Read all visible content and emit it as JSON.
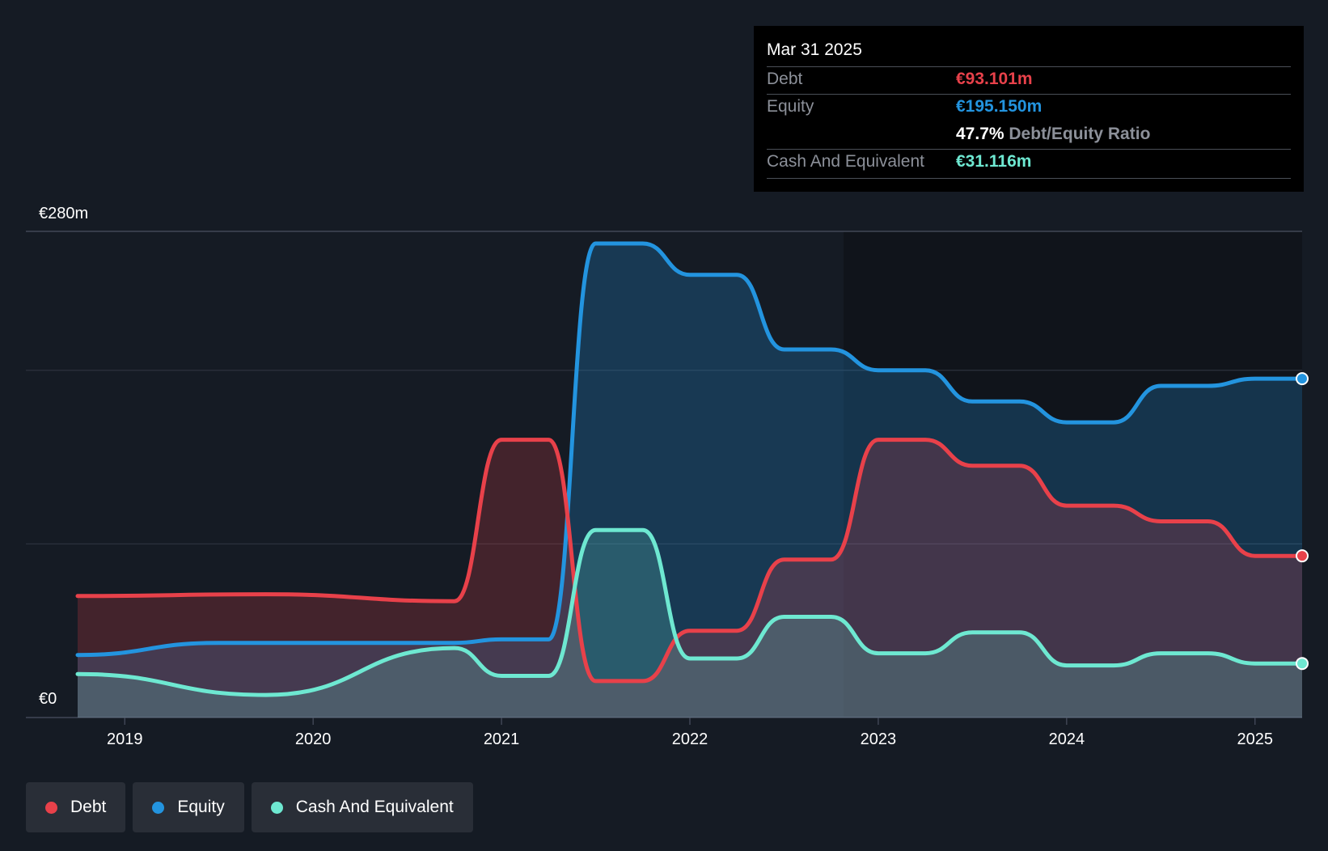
{
  "tooltip": {
    "date": "Mar 31 2025",
    "rows": [
      {
        "label": "Debt",
        "value": "€93.101m"
      },
      {
        "label": "Equity",
        "value": "€195.150m"
      },
      {
        "label": "",
        "value": "47.7%",
        "suffix": "Debt/Equity Ratio"
      },
      {
        "label": "Cash And Equivalent",
        "value": "€31.116m"
      }
    ]
  },
  "legend": [
    {
      "label": "Debt",
      "color": "#e8414a"
    },
    {
      "label": "Equity",
      "color": "#2394df"
    },
    {
      "label": "Cash And Equivalent",
      "color": "#6ee8d1"
    }
  ],
  "chart_data": {
    "type": "area",
    "y_unit": "€m",
    "ylim": [
      0,
      280
    ],
    "y_tick_labels": [
      {
        "value": 280,
        "label": "€280m"
      },
      {
        "value": 0,
        "label": "€0"
      }
    ],
    "gridlines": [
      0,
      100,
      200,
      280
    ],
    "xlim": [
      2018.75,
      2025.25
    ],
    "x_ticks": [
      2019,
      2020,
      2021,
      2022,
      2023,
      2024,
      2025
    ],
    "series": [
      {
        "name": "Debt",
        "color": "#e8414a",
        "x": [
          2018.75,
          2019.75,
          2020.75,
          2021.0,
          2021.25,
          2021.5,
          2021.75,
          2022.0,
          2022.25,
          2022.5,
          2022.75,
          2023.0,
          2023.25,
          2023.5,
          2023.75,
          2024.0,
          2024.25,
          2024.5,
          2024.75,
          2025.0,
          2025.25
        ],
        "values": [
          70,
          71,
          67,
          160,
          160,
          21,
          21,
          50,
          50,
          91,
          91,
          160,
          160,
          145,
          145,
          122,
          122,
          113,
          113,
          93.101,
          93.101
        ]
      },
      {
        "name": "Equity",
        "color": "#2394df",
        "x": [
          2018.75,
          2019.5,
          2020.0,
          2020.75,
          2021.0,
          2021.25,
          2021.5,
          2021.75,
          2022.0,
          2022.25,
          2022.5,
          2022.75,
          2023.0,
          2023.25,
          2023.5,
          2023.75,
          2024.0,
          2024.25,
          2024.5,
          2024.75,
          2025.0,
          2025.25
        ],
        "values": [
          36,
          43,
          43,
          43,
          45,
          45,
          273,
          273,
          255,
          255,
          212,
          212,
          200,
          200,
          182,
          182,
          170,
          170,
          191,
          191,
          195.15,
          195.15
        ]
      },
      {
        "name": "Cash And Equivalent",
        "color": "#6ee8d1",
        "x": [
          2018.75,
          2019.75,
          2020.75,
          2021.0,
          2021.25,
          2021.5,
          2021.75,
          2022.0,
          2022.25,
          2022.5,
          2022.75,
          2023.0,
          2023.25,
          2023.5,
          2023.75,
          2024.0,
          2024.25,
          2024.5,
          2024.75,
          2025.0,
          2025.25
        ],
        "values": [
          25,
          13,
          40,
          24,
          24,
          108,
          108,
          34,
          34,
          58,
          58,
          37,
          37,
          49,
          49,
          30,
          30,
          37,
          37,
          31.116,
          31.116
        ]
      }
    ]
  }
}
